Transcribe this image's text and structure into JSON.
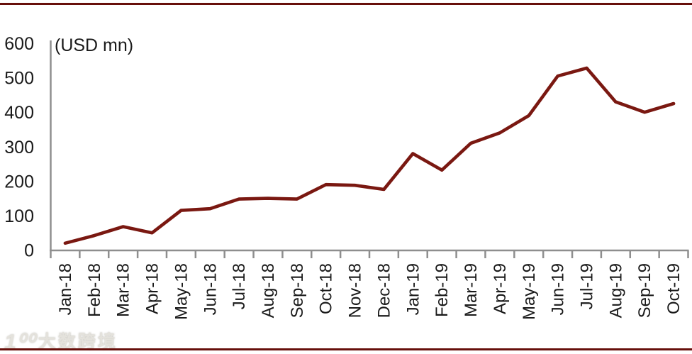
{
  "frame": {
    "background": "#FFFFFF",
    "top_border_color": "#670F0B",
    "bottom_border_color": "#670F0B"
  },
  "chart_data": {
    "type": "line",
    "title": "",
    "ylabel_unit": "(USD mn)",
    "categories": [
      "Jan-18",
      "Feb-18",
      "Mar-18",
      "Apr-18",
      "May-18",
      "Jun-18",
      "Jul-18",
      "Aug-18",
      "Sep-18",
      "Oct-18",
      "Nov-18",
      "Dec-18",
      "Jan-19",
      "Feb-19",
      "Mar-19",
      "Apr-19",
      "May-19",
      "Jun-19",
      "Jul-19",
      "Aug-19",
      "Sep-19",
      "Oct-19"
    ],
    "values": [
      20,
      42,
      68,
      50,
      115,
      120,
      148,
      150,
      148,
      190,
      188,
      176,
      280,
      232,
      310,
      340,
      390,
      505,
      528,
      430,
      400,
      425
    ],
    "ylim": [
      0,
      600
    ],
    "yticks": [
      0,
      100,
      200,
      300,
      400,
      500,
      600
    ],
    "grid": false,
    "legend_position": "none",
    "x_tick_rotation": -90,
    "line_color": "#7A1811",
    "axis_color": "#8E8E8E",
    "tick_label_color": "#1A1A1A"
  },
  "watermark": {
    "logo": "1⁰⁰",
    "text": "大数跨境"
  }
}
